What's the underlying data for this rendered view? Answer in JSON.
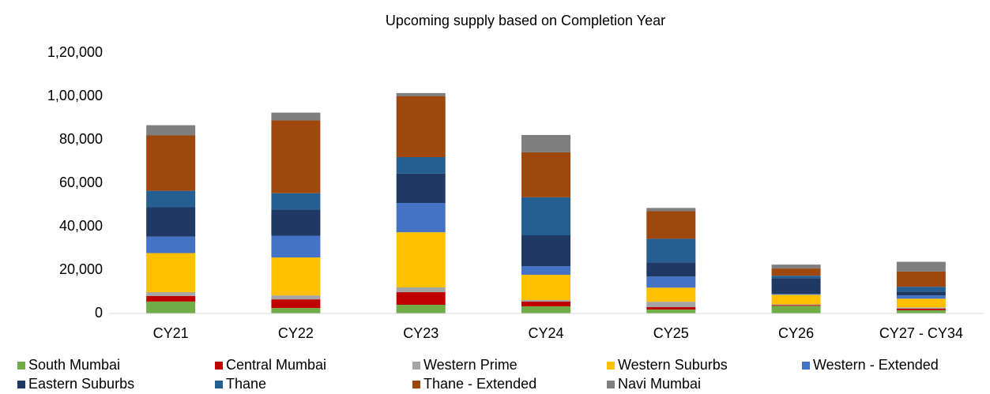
{
  "chart_data": {
    "type": "stacked_bar",
    "title": "Upcoming supply based on Completion Year",
    "categories": [
      "CY21",
      "CY22",
      "CY23",
      "CY24",
      "CY25",
      "CY26",
      "CY27 - CY34"
    ],
    "series": [
      {
        "name": "South Mumbai",
        "color": "#70ad47",
        "values": [
          5500,
          2500,
          4000,
          3300,
          1800,
          3500,
          1500
        ]
      },
      {
        "name": "Central Mumbai",
        "color": "#c00000",
        "values": [
          2500,
          4000,
          5800,
          2200,
          1100,
          400,
          700
        ]
      },
      {
        "name": "Western Prime",
        "color": "#a5a5a5",
        "values": [
          1800,
          1800,
          2200,
          700,
          2500,
          300,
          600
        ]
      },
      {
        "name": "Western Suburbs",
        "color": "#ffc000",
        "values": [
          18000,
          17500,
          25400,
          11600,
          6500,
          4400,
          4000
        ]
      },
      {
        "name": "Western - Extended",
        "color": "#4472c4",
        "values": [
          7600,
          10000,
          13500,
          4000,
          5100,
          400,
          1500
        ]
      },
      {
        "name": "Eastern Suburbs",
        "color": "#1f3864",
        "values": [
          13500,
          12000,
          13500,
          14200,
          6500,
          7300,
          1800
        ]
      },
      {
        "name": "Thane",
        "color": "#255e91",
        "values": [
          7600,
          7600,
          7600,
          17500,
          10900,
          1100,
          2200
        ]
      },
      {
        "name": "Thane - Extended",
        "color": "#9e480e",
        "values": [
          25500,
          33500,
          28000,
          20700,
          12700,
          3300,
          7000
        ]
      },
      {
        "name": "Navi Mumbai",
        "color": "#7f7f7f",
        "values": [
          4700,
          3600,
          1500,
          8000,
          1500,
          1800,
          4500
        ]
      }
    ],
    "ylim": [
      0,
      120000
    ],
    "yticks": [
      0,
      {
        "value": 20000,
        "label": "20,000"
      },
      {
        "value": 40000,
        "label": "40,000"
      },
      {
        "value": 60000,
        "label": "60,000"
      },
      {
        "value": 80000,
        "label": "80,000"
      },
      {
        "value": 100000,
        "label": "1,00,000"
      },
      {
        "value": 120000,
        "label": "1,20,000"
      }
    ],
    "grid": false,
    "legend": "bottom"
  }
}
